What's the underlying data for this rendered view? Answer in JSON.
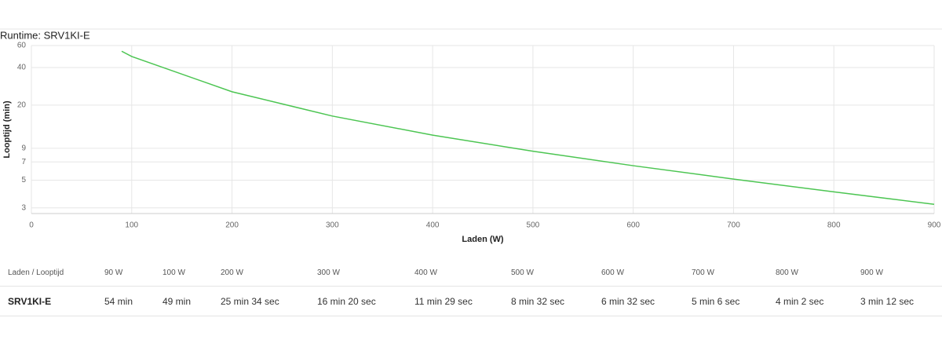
{
  "chart_data": {
    "type": "line",
    "title": "Runtime: SRV1KI-E",
    "x_label": "Laden (W)",
    "y_label": "Looptijd (min)",
    "x": [
      90,
      100,
      200,
      300,
      400,
      500,
      600,
      700,
      800,
      900
    ],
    "values": [
      54,
      49,
      25.57,
      16.33,
      11.48,
      8.53,
      6.53,
      5.1,
      4.03,
      3.2
    ],
    "color": "#4cc552",
    "log_y": true,
    "grid": true,
    "xlim": [
      0,
      900
    ],
    "xticks": [
      0,
      100,
      200,
      300,
      400,
      500,
      600,
      700,
      800,
      900
    ],
    "ylim": [
      2.7,
      60
    ],
    "yticks": [
      3,
      5,
      7,
      9,
      20,
      40,
      60
    ]
  },
  "table": {
    "header": [
      "Laden / Looptijd",
      "90 W",
      "100 W",
      "200 W",
      "300 W",
      "400 W",
      "500 W",
      "600 W",
      "700 W",
      "800 W",
      "900 W"
    ],
    "rows": [
      [
        "SRV1KI-E",
        "54 min",
        "49 min",
        "25 min 34 sec",
        "16 min 20 sec",
        "11 min 29 sec",
        "8 min 32 sec",
        "6 min 32 sec",
        "5 min 6 sec",
        "4 min 2 sec",
        "3 min 12 sec"
      ]
    ]
  }
}
